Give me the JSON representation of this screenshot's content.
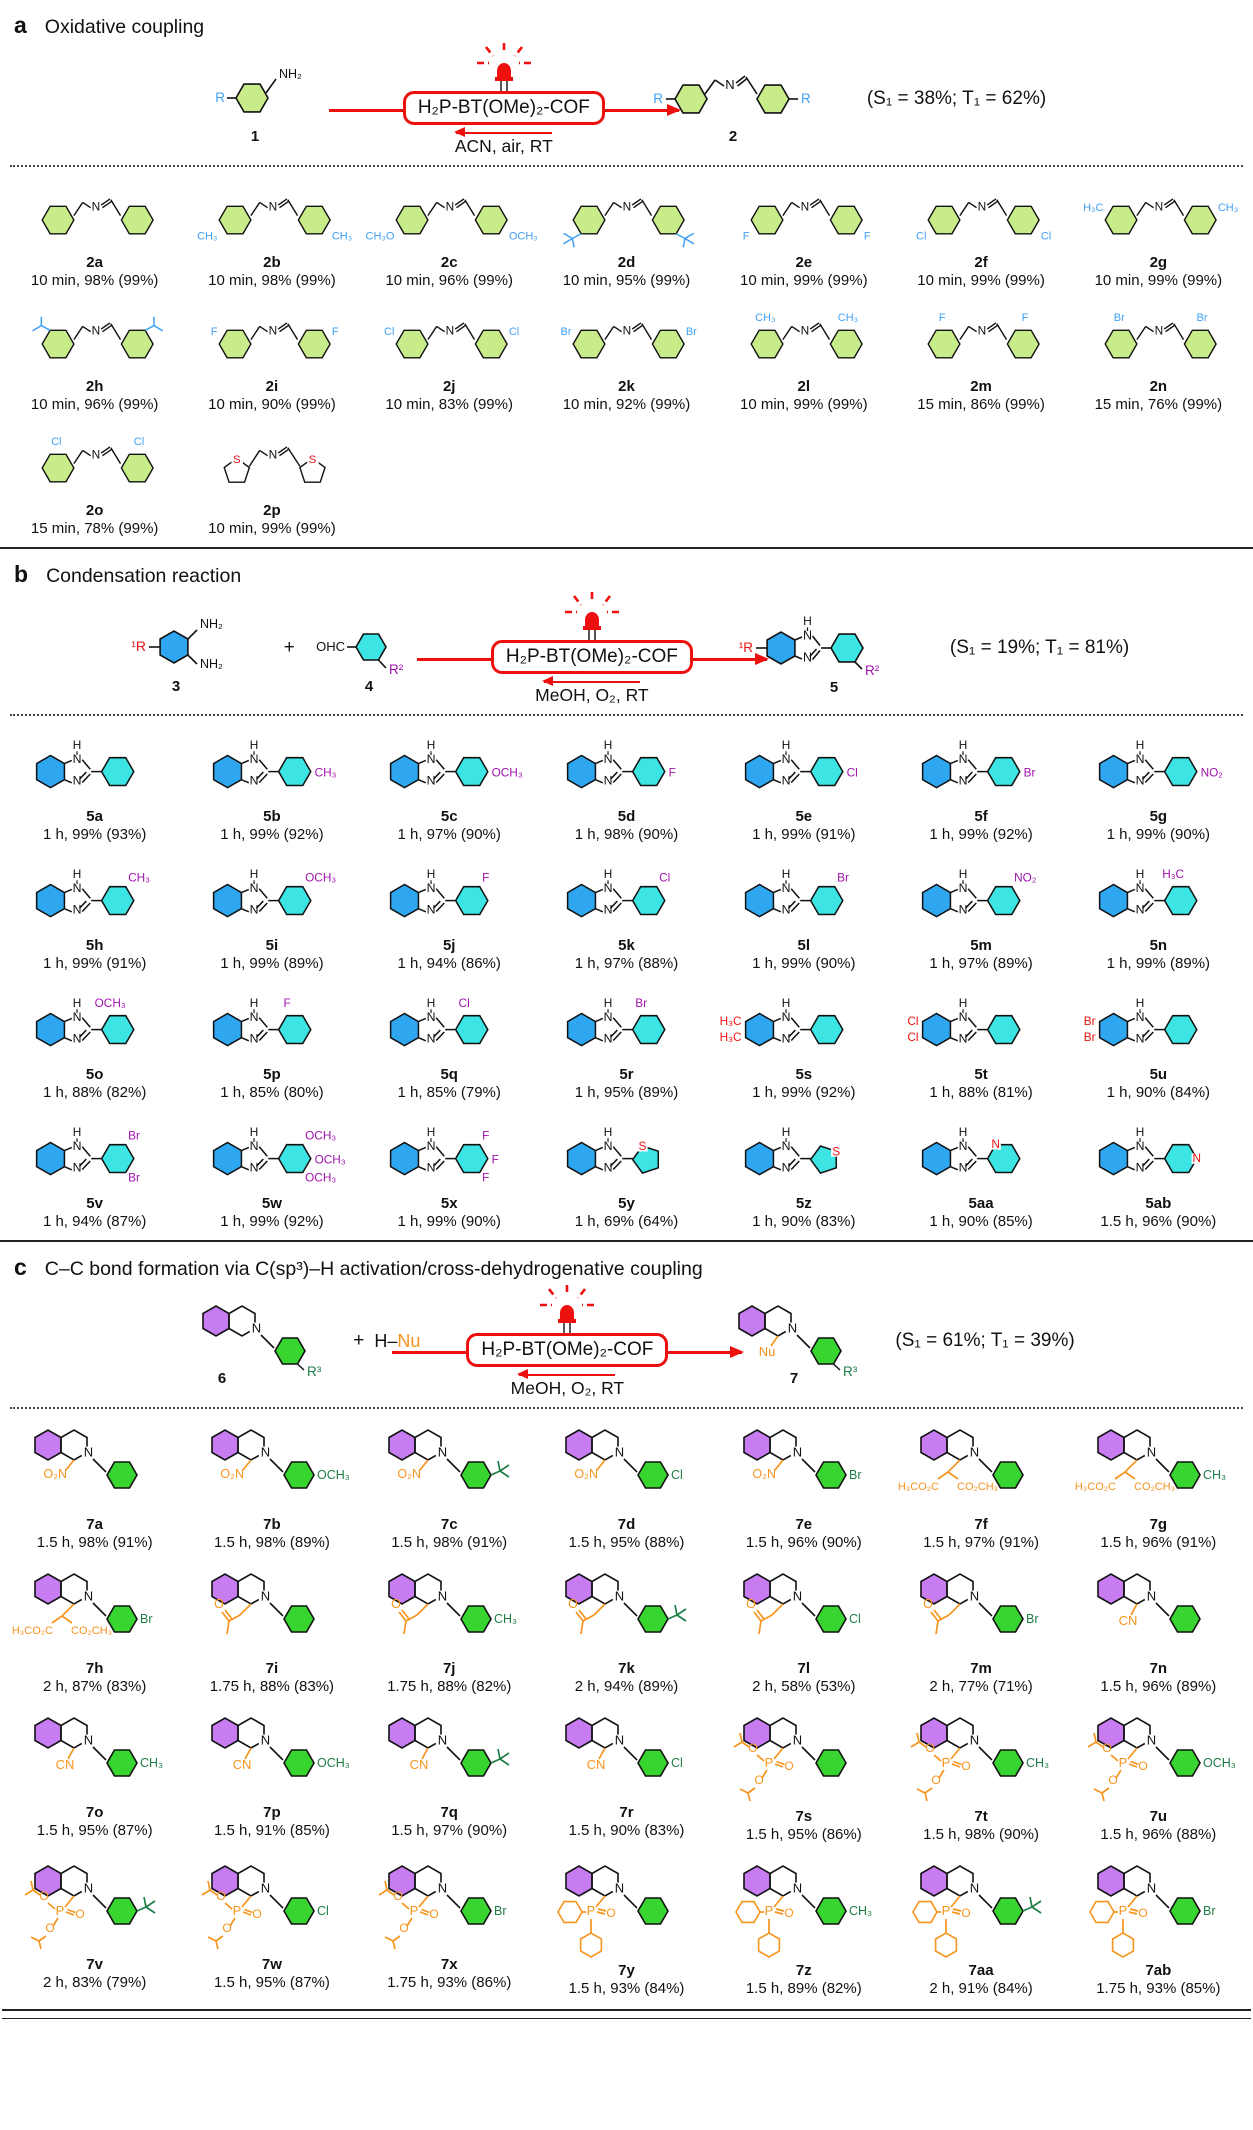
{
  "figure": {
    "atoms": {
      "n": "N",
      "h": "H",
      "s": "S"
    },
    "colors": {
      "red": "#ee0f0f",
      "blue_sub": "#41a0f5",
      "green_ring": "#c9ec8b",
      "blue_ring": "#2fa7f0",
      "cyan_ring": "#3ce4e4",
      "purple_sub": "#a013ad",
      "red_sub": "#ee1111",
      "purple_ring": "#c77cf2",
      "green_ring2": "#38d42f",
      "green_sub": "#1e7d46",
      "orange": "#f7941d",
      "bond": "#111111"
    }
  },
  "panels": [
    {
      "id": "a",
      "letter": "a",
      "title": "Oxidative coupling",
      "scheme": {
        "r_label": "R",
        "amine": "NH₂",
        "reactant_no": "1",
        "catalyst": "H₂P-BT(OMe)₂-COF",
        "conditions": "ACN, air, RT",
        "product_no": "2",
        "stats": "(S₁ = 38%; T₁ = 62%)"
      },
      "compounds": [
        {
          "label": "2a",
          "yield": "10 min, 98% (99%)"
        },
        {
          "label": "2b",
          "yield": "10 min, 98% (99%)",
          "sL": "CH₃",
          "pL": "para",
          "sR": "CH₃",
          "pR": "para"
        },
        {
          "label": "2c",
          "yield": "10 min, 96% (99%)",
          "sL": "CH₃O",
          "pL": "para",
          "sR": "OCH₃",
          "pR": "para"
        },
        {
          "label": "2d",
          "yield": "10 min, 95% (99%)",
          "sL": "tBu",
          "pL": "para",
          "sR": "tBu",
          "pR": "para"
        },
        {
          "label": "2e",
          "yield": "10 min, 99% (99%)",
          "sL": "F",
          "pL": "para",
          "sR": "F",
          "pR": "para"
        },
        {
          "label": "2f",
          "yield": "10 min, 99% (99%)",
          "sL": "Cl",
          "pL": "para",
          "sR": "Cl",
          "pR": "para"
        },
        {
          "label": "2g",
          "yield": "10 min, 99% (99%)",
          "sL": "H₃C",
          "pL": "meta",
          "sR": "CH₃",
          "pR": "meta"
        },
        {
          "label": "2h",
          "yield": "10 min, 96% (99%)",
          "sL": "iPr",
          "pL": "meta",
          "sR": "iPr",
          "pR": "meta"
        },
        {
          "label": "2i",
          "yield": "10 min, 90% (99%)",
          "sL": "F",
          "pL": "meta",
          "sR": "F",
          "pR": "meta"
        },
        {
          "label": "2j",
          "yield": "10 min, 83% (99%)",
          "sL": "Cl",
          "pL": "meta",
          "sR": "Cl",
          "pR": "meta"
        },
        {
          "label": "2k",
          "yield": "10 min, 92% (99%)",
          "sL": "Br",
          "pL": "meta",
          "sR": "Br",
          "pR": "meta"
        },
        {
          "label": "2l",
          "yield": "10 min, 99% (99%)",
          "sL": "CH₃",
          "pL": "ortho",
          "sR": "CH₃",
          "pR": "ortho"
        },
        {
          "label": "2m",
          "yield": "15 min, 86% (99%)",
          "sL": "F",
          "pL": "ortho",
          "sR": "F",
          "pR": "ortho"
        },
        {
          "label": "2n",
          "yield": "15 min, 76% (99%)",
          "sL": "Br",
          "pL": "ortho",
          "sR": "Br",
          "pR": "ortho"
        },
        {
          "label": "2o",
          "yield": "15 min, 78% (99%)",
          "sL": "Cl",
          "pL": "ortho",
          "sR": "Cl",
          "pR": "ortho"
        },
        {
          "label": "2p",
          "yield": "10 min, 99% (99%)",
          "thio": true
        }
      ]
    },
    {
      "id": "b",
      "letter": "b",
      "title": "Condensation reaction",
      "scheme": {
        "r1": "¹R",
        "nh2": "NH₂",
        "no3": "3",
        "plus": "+",
        "cho": "OHC",
        "r2": "R²",
        "no4": "4",
        "catalyst": "H₂P-BT(OMe)₂-COF",
        "conditions": "MeOH, O₂, RT",
        "no5": "5",
        "stats": "(S₁ = 19%; T₁ = 81%)"
      },
      "compounds": [
        {
          "label": "5a",
          "yield": "1 h, 99% (93%)"
        },
        {
          "label": "5b",
          "yield": "1 h, 99% (92%)",
          "subs": [
            {
              "t": "CH₃",
              "p": "para"
            }
          ]
        },
        {
          "label": "5c",
          "yield": "1 h, 97% (90%)",
          "subs": [
            {
              "t": "OCH₃",
              "p": "para"
            }
          ]
        },
        {
          "label": "5d",
          "yield": "1 h, 98% (90%)",
          "subs": [
            {
              "t": "F",
              "p": "para"
            }
          ]
        },
        {
          "label": "5e",
          "yield": "1 h, 99% (91%)",
          "subs": [
            {
              "t": "Cl",
              "p": "para"
            }
          ]
        },
        {
          "label": "5f",
          "yield": "1 h, 99% (92%)",
          "subs": [
            {
              "t": "Br",
              "p": "para"
            }
          ]
        },
        {
          "label": "5g",
          "yield": "1 h, 99% (90%)",
          "subs": [
            {
              "t": "NO₂",
              "p": "para"
            }
          ]
        },
        {
          "label": "5h",
          "yield": "1 h, 99% (91%)",
          "subs": [
            {
              "t": "CH₃",
              "p": "meta"
            }
          ]
        },
        {
          "label": "5i",
          "yield": "1 h, 99% (89%)",
          "subs": [
            {
              "t": "OCH₃",
              "p": "meta"
            }
          ]
        },
        {
          "label": "5j",
          "yield": "1 h, 94% (86%)",
          "subs": [
            {
              "t": "F",
              "p": "meta"
            }
          ]
        },
        {
          "label": "5k",
          "yield": "1 h, 97% (88%)",
          "subs": [
            {
              "t": "Cl",
              "p": "meta"
            }
          ]
        },
        {
          "label": "5l",
          "yield": "1 h, 99% (90%)",
          "subs": [
            {
              "t": "Br",
              "p": "meta"
            }
          ]
        },
        {
          "label": "5m",
          "yield": "1 h, 97% (89%)",
          "subs": [
            {
              "t": "NO₂",
              "p": "meta"
            }
          ]
        },
        {
          "label": "5n",
          "yield": "1 h, 99% (89%)",
          "subs": [
            {
              "t": "H₃C",
              "p": "ortho"
            }
          ]
        },
        {
          "label": "5o",
          "yield": "1 h, 88% (82%)",
          "subs": [
            {
              "t": "OCH₃",
              "p": "ortho"
            }
          ]
        },
        {
          "label": "5p",
          "yield": "1 h, 85% (80%)",
          "subs": [
            {
              "t": "F",
              "p": "ortho"
            }
          ]
        },
        {
          "label": "5q",
          "yield": "1 h, 85% (79%)",
          "subs": [
            {
              "t": "Cl",
              "p": "ortho"
            }
          ]
        },
        {
          "label": "5r",
          "yield": "1 h, 95% (89%)",
          "subs": [
            {
              "t": "Br",
              "p": "ortho"
            }
          ]
        },
        {
          "label": "5s",
          "yield": "1 h, 99% (92%)",
          "benz": [
            "H₃C",
            "H₃C"
          ]
        },
        {
          "label": "5t",
          "yield": "1 h, 88% (81%)",
          "benz": [
            "Cl",
            "Cl"
          ]
        },
        {
          "label": "5u",
          "yield": "1 h, 90% (84%)",
          "benz": [
            "Br",
            "Br"
          ]
        },
        {
          "label": "5v",
          "yield": "1 h, 94% (87%)",
          "subs": [
            {
              "t": "Br",
              "p": "meta"
            },
            {
              "t": "Br",
              "p": "meta2"
            }
          ]
        },
        {
          "label": "5w",
          "yield": "1 h, 99% (92%)",
          "subs": [
            {
              "t": "OCH₃",
              "p": "meta"
            },
            {
              "t": "OCH₃",
              "p": "para"
            },
            {
              "t": "OCH₃",
              "p": "meta2"
            }
          ]
        },
        {
          "label": "5x",
          "yield": "1 h, 99% (90%)",
          "subs": [
            {
              "t": "F",
              "p": "meta"
            },
            {
              "t": "F",
              "p": "para"
            },
            {
              "t": "F",
              "p": "meta2"
            }
          ]
        },
        {
          "label": "5y",
          "yield": "1 h, 69% (64%)",
          "aryl": "thio2"
        },
        {
          "label": "5z",
          "yield": "1 h, 90% (83%)",
          "aryl": "thio3"
        },
        {
          "label": "5aa",
          "yield": "1 h, 90% (85%)",
          "aryl": "py2"
        },
        {
          "label": "5ab",
          "yield": "1.5 h, 96% (90%)",
          "aryl": "py4"
        }
      ]
    },
    {
      "id": "c",
      "letter": "c",
      "title": "C–C bond formation via C(sp³)–H activation/cross-dehydrogenative coupling",
      "scheme": {
        "no6": "6",
        "r3": "R³",
        "plus": "+",
        "hnu_h": "H–",
        "hnu_nu": "Nu",
        "catalyst": "H₂P-BT(OMe)₂-COF",
        "conditions": "MeOH, O₂, RT",
        "no7": "7",
        "nu": "Nu",
        "stats": "(S₁ = 61%; T₁ = 39%)"
      },
      "nu_labels": {
        "no2": "O₂N",
        "cn": "CN",
        "malonate_l": "H₃CO₂C",
        "malonate_r": "CO₂CH₃",
        "carbonyl_o": "O",
        "p": "P",
        "o": "O"
      },
      "compounds": [
        {
          "label": "7a",
          "yield": "1.5 h, 98% (91%)",
          "nu": "no2",
          "sub": ""
        },
        {
          "label": "7b",
          "yield": "1.5 h, 98% (89%)",
          "nu": "no2",
          "sub": "OCH₃"
        },
        {
          "label": "7c",
          "yield": "1.5 h, 98% (91%)",
          "nu": "no2",
          "sub": "tBu"
        },
        {
          "label": "7d",
          "yield": "1.5 h, 95% (88%)",
          "nu": "no2",
          "sub": "Cl"
        },
        {
          "label": "7e",
          "yield": "1.5 h, 96% (90%)",
          "nu": "no2",
          "sub": "Br"
        },
        {
          "label": "7f",
          "yield": "1.5 h, 97% (91%)",
          "nu": "malonate",
          "sub": ""
        },
        {
          "label": "7g",
          "yield": "1.5 h, 96% (91%)",
          "nu": "malonate",
          "sub": "CH₃"
        },
        {
          "label": "7h",
          "yield": "2 h, 87% (83%)",
          "nu": "malonate",
          "sub": "Br"
        },
        {
          "label": "7i",
          "yield": "1.75 h, 88% (83%)",
          "nu": "acetonyl",
          "sub": ""
        },
        {
          "label": "7j",
          "yield": "1.75 h, 88% (82%)",
          "nu": "acetonyl",
          "sub": "CH₃"
        },
        {
          "label": "7k",
          "yield": "2 h, 94% (89%)",
          "nu": "acetonyl",
          "sub": "tBu"
        },
        {
          "label": "7l",
          "yield": "2 h, 58% (53%)",
          "nu": "acetonyl",
          "sub": "Cl"
        },
        {
          "label": "7m",
          "yield": "2 h, 77% (71%)",
          "nu": "acetonyl",
          "sub": "Br"
        },
        {
          "label": "7n",
          "yield": "1.5 h, 96% (89%)",
          "nu": "cn",
          "sub": ""
        },
        {
          "label": "7o",
          "yield": "1.5 h, 95% (87%)",
          "nu": "cn",
          "sub": "CH₃"
        },
        {
          "label": "7p",
          "yield": "1.5 h, 91% (85%)",
          "nu": "cn",
          "sub": "OCH₃"
        },
        {
          "label": "7q",
          "yield": "1.5 h, 97% (90%)",
          "nu": "cn",
          "sub": "tBu"
        },
        {
          "label": "7r",
          "yield": "1.5 h, 90% (83%)",
          "nu": "cn",
          "sub": "Cl"
        },
        {
          "label": "7s",
          "yield": "1.5 h, 95% (86%)",
          "nu": "phosphonate",
          "sub": ""
        },
        {
          "label": "7t",
          "yield": "1.5 h, 98% (90%)",
          "nu": "phosphonate",
          "sub": "CH₃"
        },
        {
          "label": "7u",
          "yield": "1.5 h, 96% (88%)",
          "nu": "phosphonate",
          "sub": "OCH₃"
        },
        {
          "label": "7v",
          "yield": "2 h, 83% (79%)",
          "nu": "phosphonate",
          "sub": "tBu"
        },
        {
          "label": "7w",
          "yield": "1.5 h, 95% (87%)",
          "nu": "phosphonate",
          "sub": "Cl"
        },
        {
          "label": "7x",
          "yield": "1.75 h, 93% (86%)",
          "nu": "phosphonate",
          "sub": "Br"
        },
        {
          "label": "7y",
          "yield": "1.5 h, 93% (84%)",
          "nu": "pop2",
          "sub": ""
        },
        {
          "label": "7z",
          "yield": "1.5 h, 89% (82%)",
          "nu": "pop2",
          "sub": "CH₃"
        },
        {
          "label": "7aa",
          "yield": "2 h, 91% (84%)",
          "nu": "pop2",
          "sub": "tBu"
        },
        {
          "label": "7ab",
          "yield": "1.75 h, 93% (85%)",
          "nu": "pop2",
          "sub": "Br"
        }
      ]
    }
  ]
}
